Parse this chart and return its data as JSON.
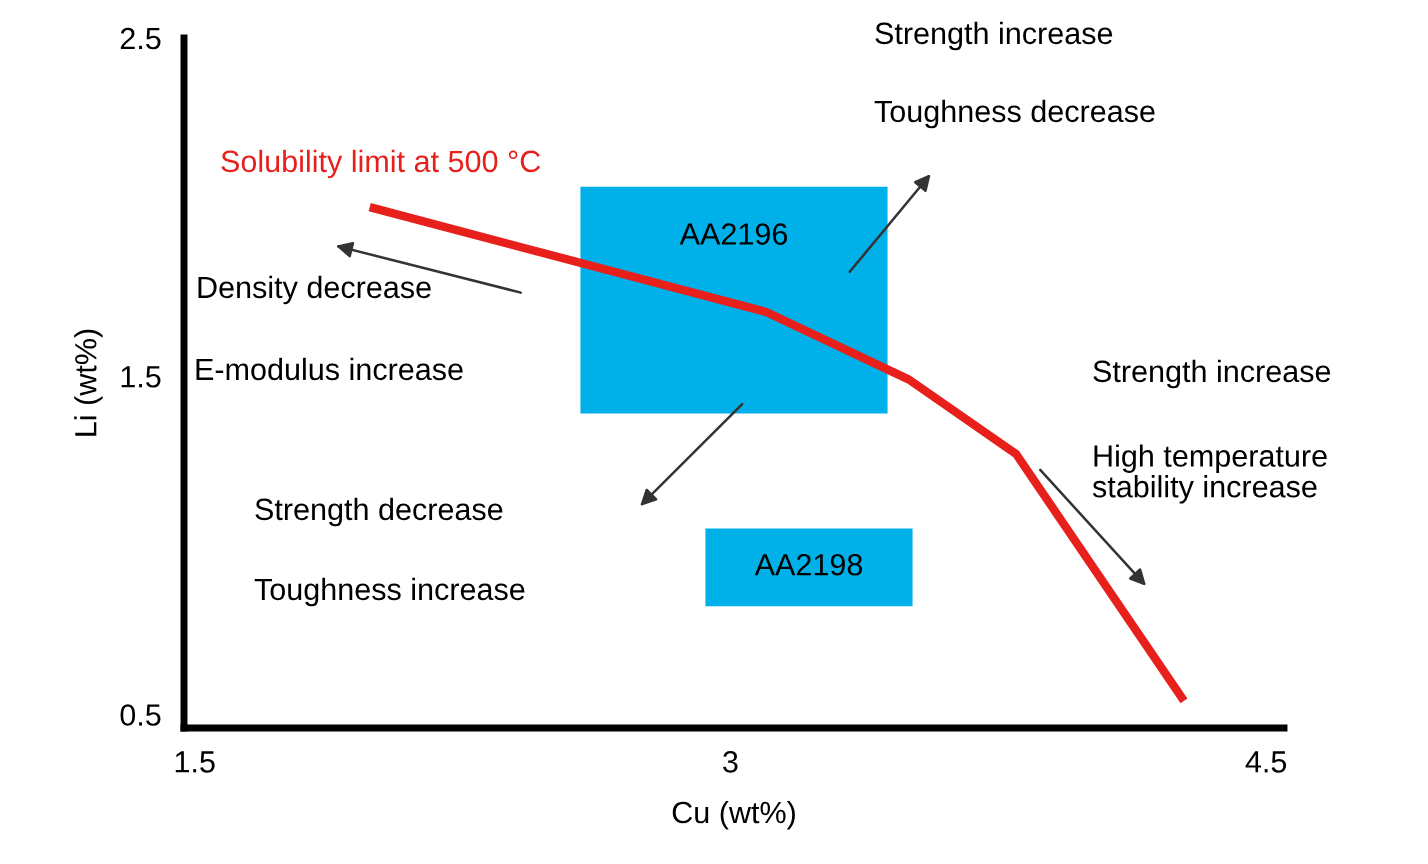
{
  "chart_data": {
    "type": "line",
    "xlabel": "Cu (wt%)",
    "ylabel": "Li (wt%)",
    "xlim": [
      1.47,
      4.55
    ],
    "xticks": [
      1.5,
      3,
      4.5
    ],
    "ylim": [
      0.46,
      2.5
    ],
    "yticks": [
      0.5,
      1.5,
      2.5
    ],
    "grid": false,
    "legend": false,
    "marker": "none",
    "line_style": "solid",
    "series": [
      {
        "name": "AA2196",
        "type": "area",
        "color": "#00b0e8",
        "x": [
          2.58,
          3.44,
          3.44,
          2.58,
          2.58
        ],
        "values": [
          2.06,
          2.06,
          1.39,
          1.39,
          2.06
        ]
      },
      {
        "name": "AA2198",
        "type": "area",
        "color": "#00b0e8",
        "x": [
          2.93,
          3.51,
          3.51,
          2.93,
          2.93
        ],
        "values": [
          1.05,
          1.05,
          0.82,
          0.82,
          1.05
        ]
      },
      {
        "name": "Solubility limit at 500 °C",
        "color": "#e8201c",
        "x": [
          1.99,
          3.1,
          3.5,
          3.8,
          4.27
        ],
        "values": [
          2.0,
          1.69,
          1.49,
          1.27,
          0.54
        ]
      }
    ],
    "annotations": [
      "Strength increase",
      "Toughness decrease",
      "Density decrease",
      "E-modulus increase",
      "Strength decrease",
      "Toughness increase",
      "Strength increase",
      "High temperature\nstability increase"
    ]
  }
}
